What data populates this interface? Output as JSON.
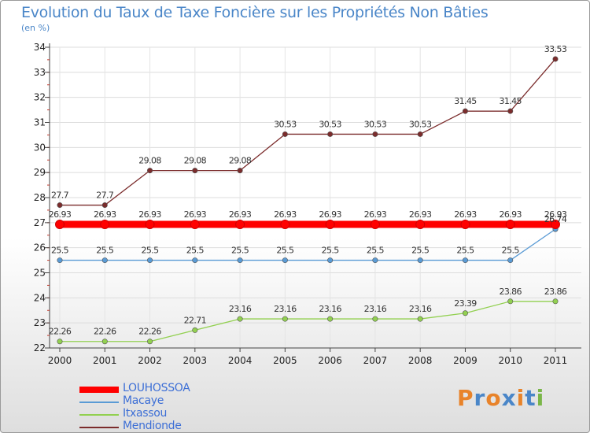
{
  "chart_data": {
    "type": "line",
    "title": "Evolution du Taux de Taxe Foncière sur les Propriétés Non Bâties",
    "subtitle": "(en %)",
    "categories": [
      "2000",
      "2001",
      "2002",
      "2003",
      "2004",
      "2005",
      "2006",
      "2007",
      "2008",
      "2009",
      "2010",
      "2011"
    ],
    "y_ticks": [
      "22",
      "23",
      "24",
      "25",
      "26",
      "27",
      "28",
      "29",
      "30",
      "31",
      "32",
      "33",
      "34"
    ],
    "ylim": [
      22,
      34
    ],
    "series": [
      {
        "name": "LOUHOSSOA",
        "color": "#ff0000",
        "values": [
          26.93,
          26.93,
          26.93,
          26.93,
          26.93,
          26.93,
          26.93,
          26.93,
          26.93,
          26.93,
          26.93,
          26.93
        ],
        "labels": [
          "26.93",
          "26.93",
          "26.93",
          "26.93",
          "26.93",
          "26.93",
          "26.93",
          "26.93",
          "26.93",
          "26.93",
          "26.93",
          "26.93"
        ]
      },
      {
        "name": "Macaye",
        "color": "#5a9bd5",
        "values": [
          25.5,
          25.5,
          25.5,
          25.5,
          25.5,
          25.5,
          25.5,
          25.5,
          25.5,
          25.5,
          25.5,
          26.74
        ],
        "labels": [
          "25.5",
          "25.5",
          "25.5",
          "25.5",
          "25.5",
          "25.5",
          "25.5",
          "25.5",
          "25.5",
          "25.5",
          "25.5",
          "26.74"
        ]
      },
      {
        "name": "Itxassou",
        "color": "#92d050",
        "values": [
          22.26,
          22.26,
          22.26,
          22.71,
          23.16,
          23.16,
          23.16,
          23.16,
          23.16,
          23.39,
          23.86,
          23.86
        ],
        "labels": [
          "22.26",
          "22.26",
          "22.26",
          "22.71",
          "23.16",
          "23.16",
          "23.16",
          "23.16",
          "23.16",
          "23.39",
          "23.86",
          "23.86"
        ]
      },
      {
        "name": "Mendionde",
        "color": "#7b2c2c",
        "values": [
          27.7,
          27.7,
          29.08,
          29.08,
          29.08,
          30.53,
          30.53,
          30.53,
          30.53,
          31.45,
          31.45,
          33.53
        ],
        "labels": [
          "27.7",
          "27.7",
          "29.08",
          "29.08",
          "29.08",
          "30.53",
          "30.53",
          "30.53",
          "30.53",
          "31.45",
          "31.45",
          "33.53"
        ]
      }
    ],
    "legend": [
      "LOUHOSSOA",
      "Macaye",
      "Itxassou",
      "Mendionde"
    ]
  },
  "logo": {
    "text": "Proxiti",
    "colors": [
      "#e8832a",
      "#4a86c8",
      "#e8832a",
      "#4a86c8",
      "#e8832a",
      "#4a86c8",
      "#7ab648"
    ]
  }
}
